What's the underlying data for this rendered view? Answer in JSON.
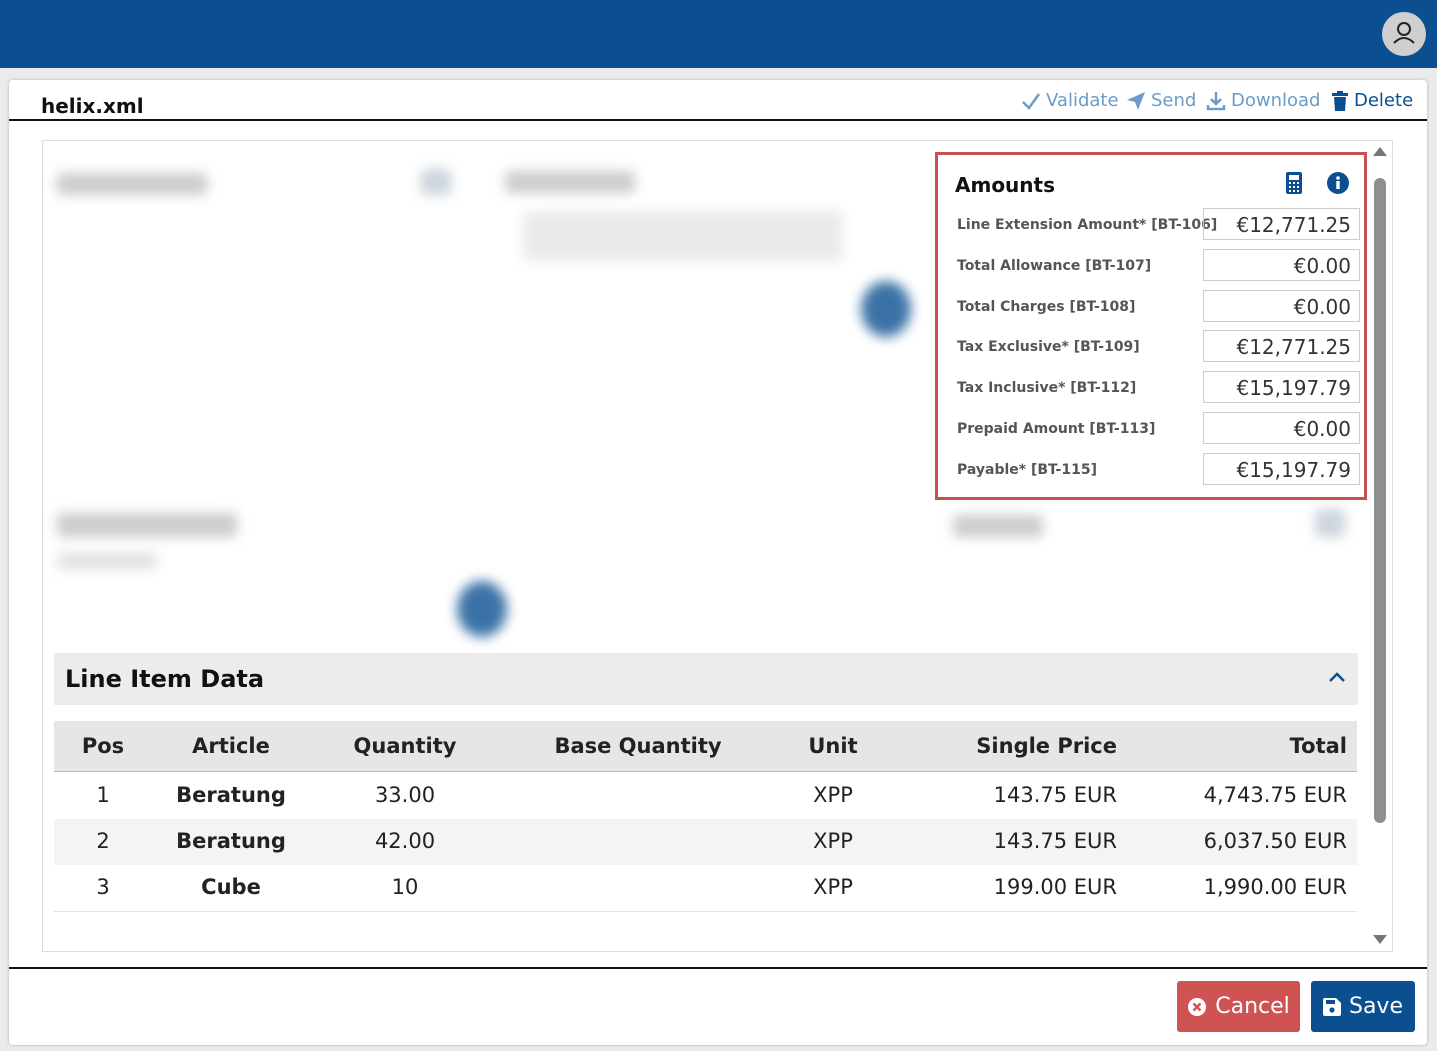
{
  "header": {
    "title": "helix.xml",
    "actions": [
      "Validate",
      "Send",
      "Download",
      "Delete"
    ]
  },
  "amounts": {
    "title": "Amounts",
    "rows": [
      {
        "label": "Line Extension Amount* [BT-106]",
        "value": "€12,771.25"
      },
      {
        "label": "Total Allowance [BT-107]",
        "value": "€0.00"
      },
      {
        "label": "Total Charges [BT-108]",
        "value": "€0.00"
      },
      {
        "label": "Tax Exclusive* [BT-109]",
        "value": "€12,771.25"
      },
      {
        "label": "Tax Inclusive* [BT-112]",
        "value": "€15,197.79"
      },
      {
        "label": "Prepaid Amount [BT-113]",
        "value": "€0.00"
      },
      {
        "label": "Payable* [BT-115]",
        "value": "€15,197.79"
      }
    ]
  },
  "line_items": {
    "title": "Line Item Data",
    "columns": {
      "pos": "Pos",
      "article": "Article",
      "quantity": "Quantity",
      "base_quantity": "Base Quantity",
      "unit": "Unit",
      "single_price": "Single Price",
      "total": "Total"
    },
    "rows": [
      {
        "pos": "1",
        "article": "Beratung",
        "quantity": "33.00",
        "unit": "XPP",
        "single_price": "143.75 EUR",
        "total": "4,743.75 EUR"
      },
      {
        "pos": "2",
        "article": "Beratung",
        "quantity": "42.00",
        "unit": "XPP",
        "single_price": "143.75 EUR",
        "total": "6,037.50 EUR"
      },
      {
        "pos": "3",
        "article": "Cube",
        "quantity": "10",
        "unit": "XPP",
        "single_price": "199.00 EUR",
        "total": "1,990.00 EUR"
      }
    ]
  },
  "footer": {
    "buttons": [
      "Cancel",
      "Save"
    ]
  }
}
